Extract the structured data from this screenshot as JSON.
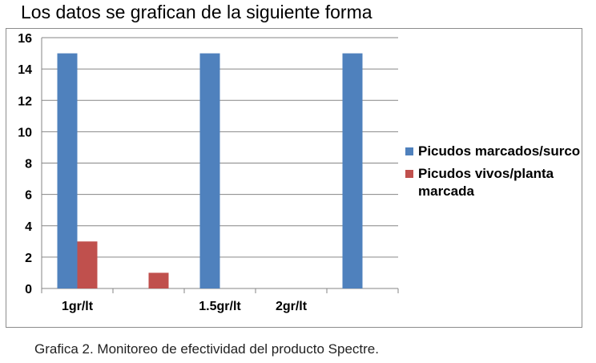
{
  "page": {
    "title": "Los datos se grafican de la siguiente forma",
    "caption": "Grafica 2. Monitoreo de efectividad del producto Spectre."
  },
  "colors": {
    "series_blue": "#4F81BD",
    "series_red": "#C0504D",
    "grid": "#868686"
  },
  "chart_data": {
    "type": "bar",
    "categories": [
      "1gr/lt",
      "",
      "1.5gr/lt",
      "2gr/lt",
      ""
    ],
    "series": [
      {
        "name": "Picudos marcados/surco",
        "color": "#4F81BD",
        "values": [
          15,
          null,
          15,
          null,
          15
        ]
      },
      {
        "name": "Picudos vivos/planta marcada",
        "color": "#C0504D",
        "values": [
          3,
          1,
          null,
          null,
          null
        ]
      }
    ],
    "yticks": [
      "0",
      "2",
      "4",
      "6",
      "8",
      "10",
      "12",
      "14",
      "16"
    ],
    "ylim": [
      0,
      16
    ],
    "grid": true,
    "legend_position": "right"
  }
}
